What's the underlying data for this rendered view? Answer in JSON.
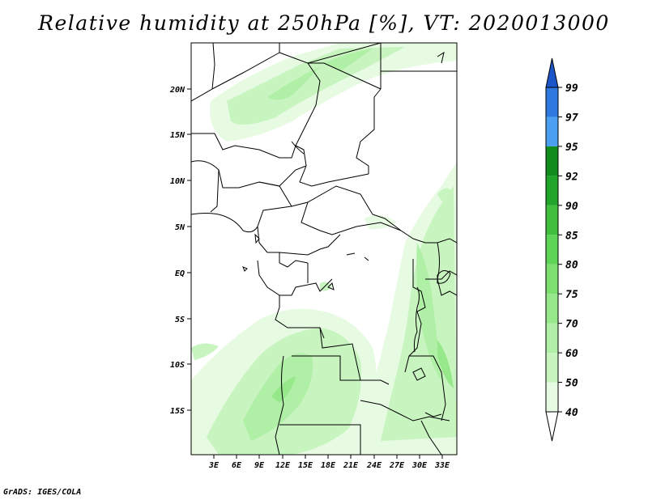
{
  "title": "Relative humidity at 250hPa [%], VT: 2020013000",
  "credit": "GrADS: IGES/COLA",
  "map": {
    "lat_ticks": [
      "20N",
      "15N",
      "10N",
      "5N",
      "EQ",
      "5S",
      "10S",
      "15S"
    ],
    "lon_ticks": [
      "3E",
      "6E",
      "9E",
      "12E",
      "15E",
      "18E",
      "21E",
      "24E",
      "27E",
      "30E",
      "33E"
    ]
  },
  "colorbar": {
    "levels": [
      "40",
      "50",
      "60",
      "70",
      "75",
      "80",
      "85",
      "90",
      "92",
      "95",
      "97",
      "99"
    ],
    "colors": [
      "#ffffff",
      "#e6fbe2",
      "#c8f4c0",
      "#b0efa6",
      "#96e88a",
      "#7ddf70",
      "#5fd558",
      "#3fbf3d",
      "#20a42a",
      "#0f8c1c",
      "#4a9ff0",
      "#2f78e0",
      "#1c55c8"
    ]
  }
}
